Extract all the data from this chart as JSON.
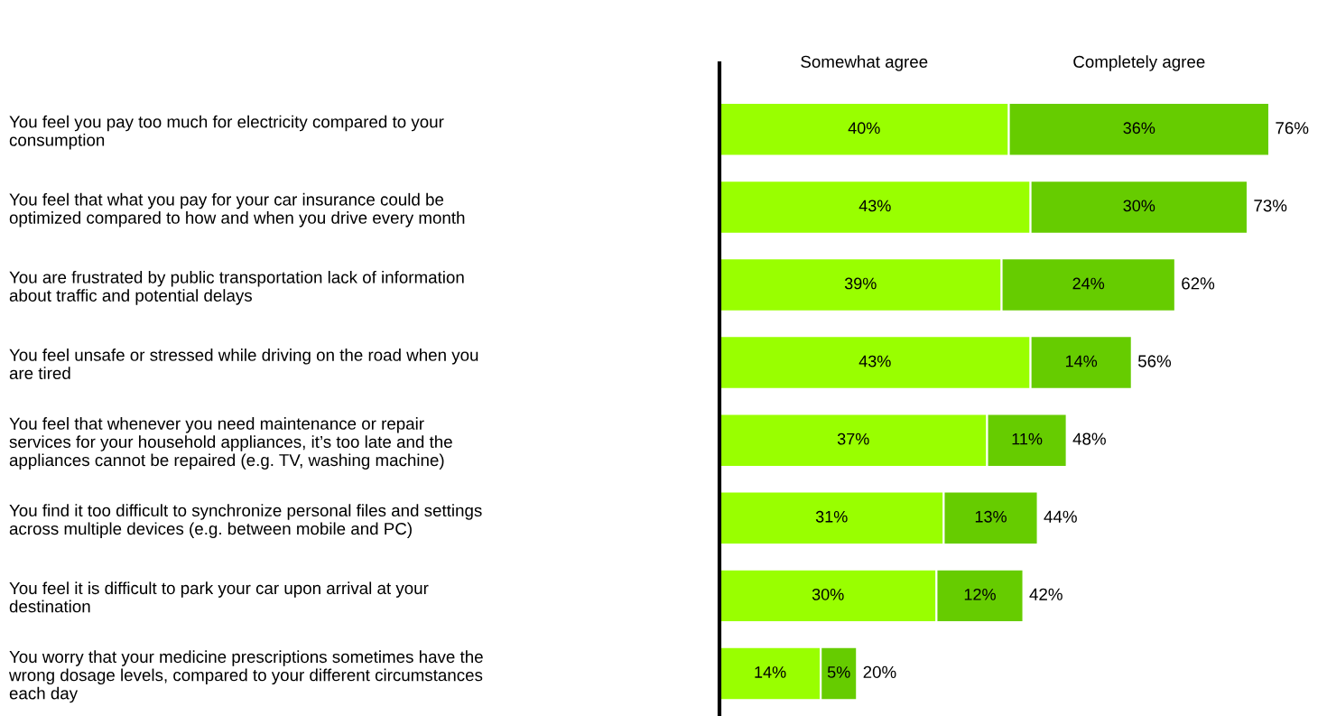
{
  "chart_data": {
    "type": "bar",
    "orientation": "horizontal",
    "stacked": true,
    "data_labels": true,
    "categories": [
      "You feel you pay too much for electricity compared to your\nconsumption",
      "You feel that what you pay for your car insurance could be\noptimized compared to how and when you drive every month",
      "You are frustrated by public transportation lack of information\nabout traffic and potential delays",
      "You feel unsafe or stressed while driving on the road when you\nare tired",
      "You feel that whenever you need maintenance or repair\nservices for your household appliances, it’s too late and the\nappliances cannot be repaired (e.g. TV, washing machine)",
      "You find it too difficult to synchronize personal files and settings\nacross multiple devices (e.g. between mobile and PC)",
      "You feel it is difficult to park your car upon arrival at your\ndestination",
      "You worry that your medicine prescriptions sometimes have the\nwrong dosage levels, compared to your different circumstances\neach day"
    ],
    "series": [
      {
        "name": "Somewhat agree",
        "color": "#99ff00",
        "values": [
          40,
          43,
          39,
          43,
          37,
          31,
          30,
          14
        ],
        "value_labels": [
          "40%",
          "43%",
          "39%",
          "43%",
          "37%",
          "31%",
          "30%",
          "14%"
        ]
      },
      {
        "name": "Completely agree",
        "color": "#66cc00",
        "values": [
          36,
          30,
          24,
          14,
          11,
          13,
          12,
          5
        ],
        "value_labels": [
          "36%",
          "30%",
          "24%",
          "14%",
          "11%",
          "13%",
          "12%",
          "5%"
        ]
      }
    ],
    "totals": [
      "76%",
      "73%",
      "62%",
      "56%",
      "48%",
      "44%",
      "42%",
      "20%"
    ],
    "tick_labels": "y",
    "grid": false,
    "legend": false
  }
}
